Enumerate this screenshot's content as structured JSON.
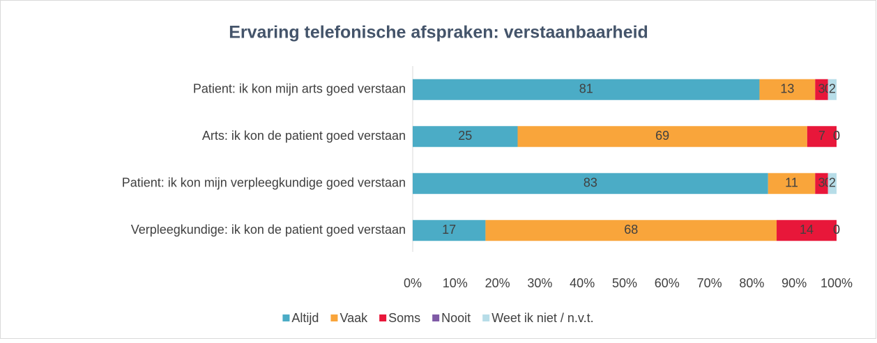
{
  "chart_data": {
    "type": "bar",
    "orientation": "horizontal",
    "stacked": "percent",
    "title": "Ervaring telefonische afspraken: verstaanbaarheid",
    "categories": [
      "Patient: ik kon mijn arts goed verstaan",
      "Arts: ik kon de patient goed verstaan",
      "Patient: ik kon mijn verpleegkundige goed verstaan",
      "Verpleegkundige: ik kon de patient goed verstaan"
    ],
    "series": [
      {
        "name": "Altijd",
        "color": "#4bacc6",
        "values": [
          81,
          25,
          83,
          17
        ]
      },
      {
        "name": "Vaak",
        "color": "#f9a53b",
        "values": [
          13,
          69,
          11,
          68
        ]
      },
      {
        "name": "Soms",
        "color": "#e8173a",
        "values": [
          3,
          7,
          3,
          14
        ]
      },
      {
        "name": "Nooit",
        "color": "#7f5aa6",
        "values": [
          0,
          0,
          0,
          0
        ]
      },
      {
        "name": "Weet ik niet / n.v.t.",
        "color": "#b7dde8",
        "values": [
          2,
          0,
          2,
          0
        ]
      }
    ],
    "xlim": [
      0,
      100
    ],
    "xticks": [
      {
        "value": 0,
        "label": "0%"
      },
      {
        "value": 10,
        "label": "10%"
      },
      {
        "value": 20,
        "label": "20%"
      },
      {
        "value": 30,
        "label": "30%"
      },
      {
        "value": 40,
        "label": "40%"
      },
      {
        "value": 50,
        "label": "50%"
      },
      {
        "value": 60,
        "label": "60%"
      },
      {
        "value": 70,
        "label": "70%"
      },
      {
        "value": 80,
        "label": "80%"
      },
      {
        "value": 90,
        "label": "90%"
      },
      {
        "value": 100,
        "label": "100%"
      }
    ],
    "legend": "bottom"
  }
}
